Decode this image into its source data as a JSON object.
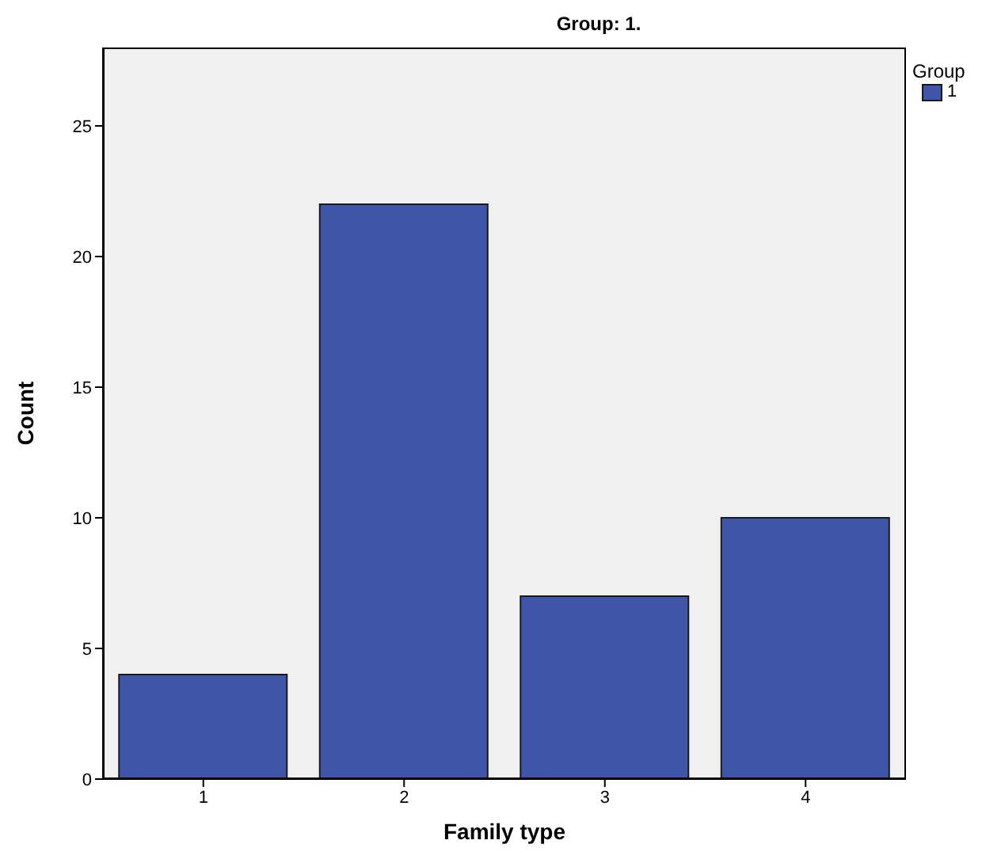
{
  "chart_data": {
    "type": "bar",
    "title": "Group: 1.",
    "xlabel": "Family type",
    "ylabel": "Count",
    "legend_title": "Group",
    "categories": [
      "1",
      "2",
      "3",
      "4"
    ],
    "series": [
      {
        "name": "1",
        "color": "#3f56a8",
        "values": [
          4,
          22,
          7,
          10
        ]
      }
    ],
    "ylim": [
      0,
      28
    ],
    "yticks": [
      0,
      5,
      10,
      15,
      20,
      25
    ],
    "grid": false,
    "legend": "top right"
  }
}
